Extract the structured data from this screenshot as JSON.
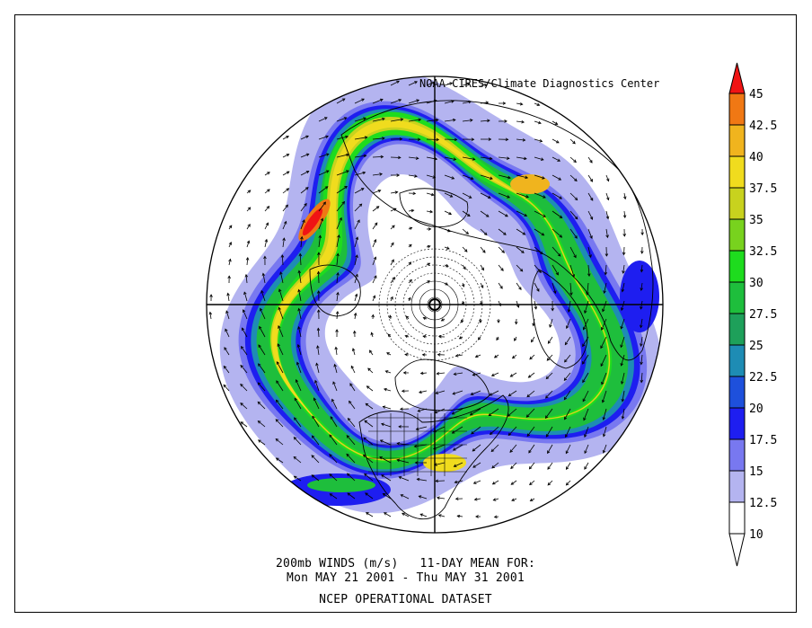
{
  "map": {
    "credit": "NOAA-CIRES/Climate Diagnostics Center",
    "projection": "north polar stereographic",
    "background_color": "#ffffff",
    "landmass_outline_color": "#000000"
  },
  "caption": {
    "line1": "200mb WINDS (m/s)   11-DAY MEAN FOR:",
    "line2": "Mon MAY 21 2001 - Thu MAY 31 2001",
    "line3": "NCEP OPERATIONAL DATASET"
  },
  "colorbar": {
    "levels": [
      "10",
      "12.5",
      "15",
      "17.5",
      "20",
      "22.5",
      "25",
      "27.5",
      "30",
      "32.5",
      "35",
      "37.5",
      "40",
      "42.5",
      "45"
    ],
    "colors": [
      "#ffffff",
      "#b4b4f0",
      "#7878f0",
      "#1e1ef0",
      "#1e50dc",
      "#1e8cb4",
      "#1ea05a",
      "#1ebe3c",
      "#1edc1e",
      "#78d21e",
      "#c8d21e",
      "#f0dc1e",
      "#f0b41e",
      "#f07814",
      "#f01414"
    ]
  }
}
